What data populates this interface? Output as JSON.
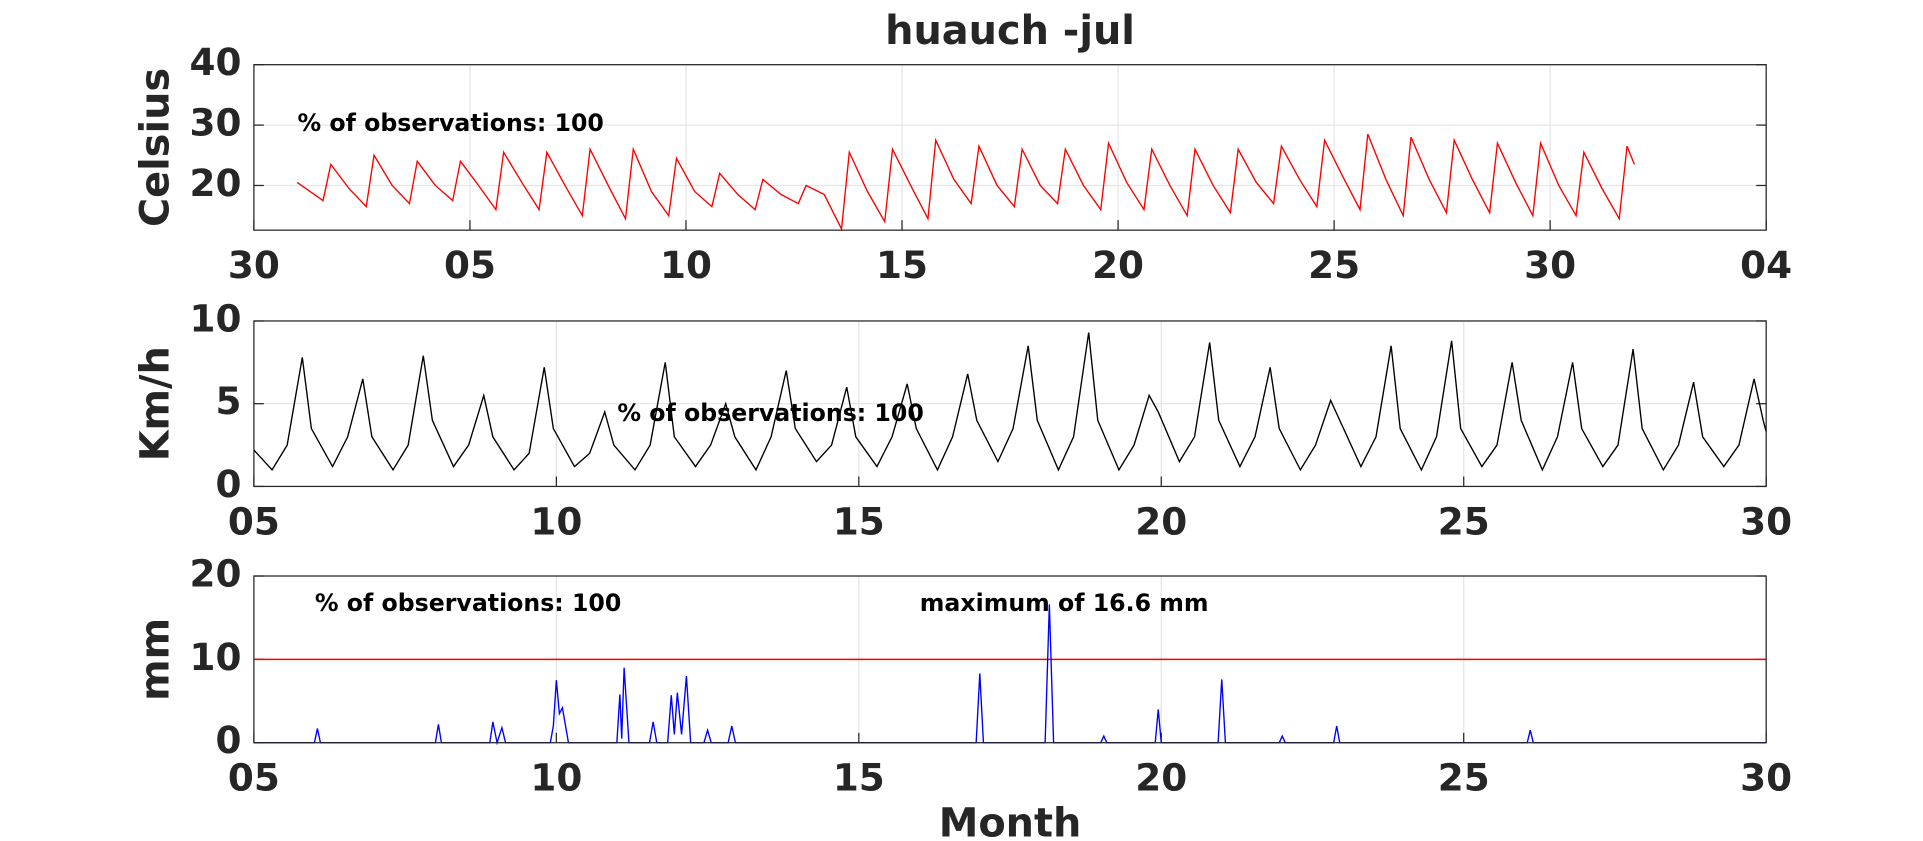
{
  "chart_data": [
    {
      "type": "line",
      "title": "huauch -jul",
      "ylabel": "Celsius",
      "annotations": [
        "% of observations: 100"
      ],
      "xlim": [
        0,
        35
      ],
      "xticks": [
        {
          "value": 0,
          "label": "30"
        },
        {
          "value": 5,
          "label": "05"
        },
        10,
        15,
        20,
        25,
        30,
        {
          "value": 35,
          "label": "04"
        }
      ],
      "ylim": [
        12.6,
        40
      ],
      "yticks": [
        20,
        30,
        40
      ],
      "grid": true,
      "x": [
        1,
        1.2,
        1.6,
        1.78,
        2.2,
        2.6,
        2.78,
        3.2,
        3.6,
        3.78,
        4.2,
        4.6,
        4.78,
        5.2,
        5.6,
        5.78,
        6.2,
        6.6,
        6.78,
        7.2,
        7.6,
        7.78,
        8.2,
        8.6,
        8.78,
        9.2,
        9.6,
        9.78,
        10.2,
        10.6,
        10.78,
        11.2,
        11.6,
        11.78,
        12.2,
        12.6,
        12.78,
        13.2,
        13.6,
        13.78,
        14.2,
        14.6,
        14.78,
        15.2,
        15.6,
        15.78,
        16.2,
        16.6,
        16.78,
        17.2,
        17.6,
        17.78,
        18.2,
        18.6,
        18.78,
        19.2,
        19.6,
        19.78,
        20.2,
        20.6,
        20.78,
        21.2,
        21.6,
        21.78,
        22.2,
        22.6,
        22.78,
        23.2,
        23.6,
        23.78,
        24.2,
        24.6,
        24.78,
        25.2,
        25.6,
        25.78,
        26.2,
        26.6,
        26.78,
        27.2,
        27.6,
        27.78,
        28.2,
        28.6,
        28.78,
        29.2,
        29.6,
        29.78,
        30.2,
        30.6,
        30.78,
        31.2,
        31.6,
        31.78,
        31.95
      ],
      "series": [
        {
          "color": "#ff0000",
          "values": [
            20.5,
            19.5,
            17.5,
            23.5,
            19.5,
            16.5,
            25,
            20,
            17,
            24,
            20,
            17.5,
            24,
            20,
            16,
            25.5,
            20.5,
            16,
            25.5,
            20,
            15,
            26,
            20,
            14.5,
            26,
            19,
            15,
            24.5,
            19,
            16.5,
            22,
            18.5,
            16,
            21,
            18.5,
            17,
            20,
            18.5,
            12.8,
            25.5,
            19,
            14,
            26,
            20,
            14.5,
            27.5,
            21,
            17,
            26.5,
            20,
            16.5,
            26,
            20,
            17,
            26,
            20,
            16,
            27,
            20.5,
            16,
            26,
            20,
            15,
            26,
            20,
            15.5,
            26,
            20.5,
            17,
            26.5,
            21,
            16.5,
            27.5,
            21.5,
            16,
            28.5,
            21,
            15,
            28,
            21,
            15.5,
            27.5,
            21,
            15.5,
            27,
            20.5,
            15,
            27,
            20,
            15,
            25.5,
            19.5,
            14.5,
            26.5,
            23.5
          ]
        }
      ]
    },
    {
      "type": "line",
      "ylabel": "Km/h",
      "annotations": [
        "% of observations: 100"
      ],
      "xlim": [
        5,
        30
      ],
      "xticks": [
        {
          "value": 5,
          "label": "05"
        },
        10,
        15,
        20,
        25,
        30
      ],
      "ylim": [
        0,
        10
      ],
      "yticks": [
        0,
        5,
        10
      ],
      "grid": true,
      "x": [
        5,
        5.3,
        5.55,
        5.8,
        5.95,
        6.3,
        6.55,
        6.8,
        6.95,
        7.3,
        7.55,
        7.8,
        7.95,
        8.3,
        8.55,
        8.8,
        8.95,
        9.3,
        9.55,
        9.8,
        9.95,
        10.3,
        10.55,
        10.8,
        10.95,
        11.3,
        11.55,
        11.8,
        11.95,
        12.3,
        12.55,
        12.8,
        12.95,
        13.3,
        13.55,
        13.8,
        13.95,
        14.3,
        14.55,
        14.8,
        14.95,
        15.3,
        15.55,
        15.8,
        15.95,
        16.3,
        16.55,
        16.8,
        16.95,
        17.3,
        17.55,
        17.8,
        17.95,
        18.3,
        18.55,
        18.8,
        18.95,
        19.3,
        19.55,
        19.8,
        19.95,
        20.3,
        20.55,
        20.8,
        20.95,
        21.3,
        21.55,
        21.8,
        21.95,
        22.3,
        22.55,
        22.8,
        22.95,
        23.3,
        23.55,
        23.8,
        23.95,
        24.3,
        24.55,
        24.8,
        24.95,
        25.3,
        25.55,
        25.8,
        25.95,
        26.3,
        26.55,
        26.8,
        26.95,
        27.3,
        27.55,
        27.8,
        27.95,
        28.3,
        28.55,
        28.8,
        28.95,
        29.3,
        29.55,
        29.8,
        29.95,
        30
      ],
      "series": [
        {
          "color": "#000000",
          "values": [
            2.2,
            1.0,
            2.5,
            7.8,
            3.5,
            1.2,
            3,
            6.5,
            3,
            1.0,
            2.5,
            7.9,
            4,
            1.2,
            2.5,
            5.5,
            3,
            1.0,
            2,
            7.2,
            3.5,
            1.2,
            2,
            4.5,
            2.5,
            1.0,
            2.5,
            7.5,
            3,
            1.2,
            2.5,
            5,
            3,
            1.0,
            3,
            7,
            3.5,
            1.5,
            2.5,
            6,
            3,
            1.2,
            3,
            6.2,
            3.5,
            1.0,
            3,
            6.8,
            4,
            1.5,
            3.5,
            8.5,
            4,
            1.0,
            3,
            9.3,
            4,
            1.0,
            2.5,
            5.5,
            4.5,
            1.5,
            3,
            8.7,
            4,
            1.2,
            3,
            7.2,
            3.5,
            1.0,
            2.5,
            5.2,
            4,
            1.2,
            3,
            8.5,
            3.5,
            1.0,
            3,
            8.8,
            3.5,
            1.2,
            2.5,
            7.5,
            4,
            1.0,
            3,
            7.5,
            3.5,
            1.2,
            2.5,
            8.3,
            3.5,
            1.0,
            2.5,
            6.3,
            3,
            1.2,
            2.5,
            6.5,
            4,
            3.3
          ]
        }
      ]
    },
    {
      "type": "line",
      "ylabel": "mm",
      "xlabel": "Month",
      "annotations": [
        "% of observations: 100",
        "maximum of 16.6 mm"
      ],
      "xlim": [
        5,
        30
      ],
      "xticks": [
        {
          "value": 5,
          "label": "05"
        },
        10,
        15,
        20,
        25,
        30
      ],
      "ylim": [
        0,
        20
      ],
      "yticks": [
        0,
        10,
        20
      ],
      "grid": true,
      "threshold": {
        "value": 10,
        "color": "#ff0000"
      },
      "x": [
        5,
        6.0,
        6.05,
        6.1,
        8.0,
        8.05,
        8.1,
        8.9,
        8.95,
        9.02,
        9.1,
        9.16,
        9.9,
        9.95,
        10.0,
        10.05,
        10.1,
        10.2,
        11.0,
        11.05,
        11.08,
        11.12,
        11.2,
        11.54,
        11.6,
        11.66,
        11.84,
        11.9,
        11.95,
        12.0,
        12.07,
        12.15,
        12.22,
        12.44,
        12.5,
        12.56,
        12.84,
        12.9,
        12.96,
        16.94,
        17.0,
        17.06,
        18.08,
        18.15,
        18.22,
        19.0,
        19.05,
        19.1,
        19.9,
        19.95,
        20.0,
        20.94,
        21.0,
        21.06,
        21.95,
        22.0,
        22.05,
        22.85,
        22.9,
        22.95,
        26.05,
        26.1,
        26.15,
        30
      ],
      "series": [
        {
          "color": "#0000ff",
          "values": [
            0,
            0,
            1.7,
            0,
            0,
            2.2,
            0,
            0,
            2.5,
            0,
            1.8,
            0,
            0,
            2,
            7.5,
            3.5,
            4.2,
            0,
            0,
            5.8,
            0.5,
            9,
            0,
            0,
            2.5,
            0,
            0,
            5.7,
            1,
            6,
            1,
            8,
            0,
            0,
            1.5,
            0,
            0,
            2,
            0,
            0,
            8.3,
            0,
            0,
            16.6,
            0,
            0,
            0.8,
            0,
            0,
            4,
            0,
            0,
            7.6,
            0,
            0,
            0.8,
            0,
            0,
            2,
            0,
            0,
            1.5,
            0,
            0
          ]
        }
      ]
    }
  ]
}
